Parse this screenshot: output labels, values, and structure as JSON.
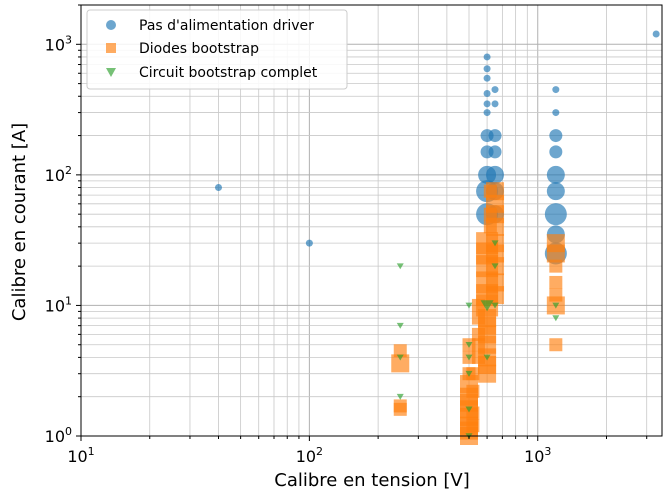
{
  "chart_data": {
    "type": "scatter",
    "xscale": "log",
    "yscale": "log",
    "xlim": [
      10,
      3500
    ],
    "ylim": [
      1,
      2000
    ],
    "xlabel": "Calibre en tension [V]",
    "ylabel": "Calibre en courant [A]",
    "xticks": [
      {
        "base": "10",
        "exp": "1",
        "value": 10
      },
      {
        "base": "10",
        "exp": "2",
        "value": 100
      },
      {
        "base": "10",
        "exp": "3",
        "value": 1000
      }
    ],
    "yticks": [
      {
        "base": "10",
        "exp": "0",
        "value": 1
      },
      {
        "base": "10",
        "exp": "1",
        "value": 10
      },
      {
        "base": "10",
        "exp": "2",
        "value": 100
      },
      {
        "base": "10",
        "exp": "3",
        "value": 1000
      }
    ],
    "grid": "major and minor",
    "legend": "top-left",
    "series": [
      {
        "name": "Pas d'alimentation driver",
        "marker": "circle",
        "color": "#1f77b4",
        "points": [
          [
            40,
            80
          ],
          [
            100,
            30
          ],
          [
            3300,
            1200
          ],
          [
            600,
            800
          ],
          [
            600,
            650
          ],
          [
            600,
            550
          ],
          [
            600,
            420
          ],
          [
            600,
            350
          ],
          [
            600,
            300
          ],
          [
            600,
            200
          ],
          [
            600,
            150
          ],
          [
            600,
            100
          ],
          [
            600,
            75
          ],
          [
            600,
            50
          ],
          [
            650,
            450
          ],
          [
            650,
            350
          ],
          [
            650,
            200
          ],
          [
            650,
            150
          ],
          [
            650,
            100
          ],
          [
            650,
            75
          ],
          [
            650,
            50
          ],
          [
            1200,
            450
          ],
          [
            1200,
            300
          ],
          [
            1200,
            200
          ],
          [
            1200,
            150
          ],
          [
            1200,
            100
          ],
          [
            1200,
            75
          ],
          [
            1200,
            50
          ],
          [
            1200,
            35
          ],
          [
            1200,
            25
          ]
        ],
        "sizes": [
          1,
          1,
          1,
          1,
          1,
          1,
          1,
          1,
          1,
          2,
          2,
          3,
          4,
          4,
          1,
          1,
          2,
          2,
          3,
          3,
          3,
          1,
          1,
          2,
          2,
          3,
          3,
          4,
          3,
          4
        ]
      },
      {
        "name": "Diodes bootstrap",
        "marker": "square",
        "color": "#ff7f0e",
        "points": [
          [
            250,
            4.5
          ],
          [
            250,
            3.6
          ],
          [
            250,
            1.7
          ],
          [
            250,
            1.6
          ],
          [
            500,
            5
          ],
          [
            500,
            4
          ],
          [
            500,
            3
          ],
          [
            500,
            2.5
          ],
          [
            500,
            2
          ],
          [
            500,
            1.8
          ],
          [
            500,
            1.6
          ],
          [
            500,
            1.4
          ],
          [
            500,
            1.2
          ],
          [
            500,
            1.1
          ],
          [
            500,
            1
          ],
          [
            520,
            3
          ],
          [
            520,
            2.2
          ],
          [
            520,
            1.5
          ],
          [
            520,
            1.2
          ],
          [
            550,
            10
          ],
          [
            550,
            8
          ],
          [
            550,
            6
          ],
          [
            550,
            5
          ],
          [
            550,
            4
          ],
          [
            600,
            30
          ],
          [
            600,
            25
          ],
          [
            600,
            20
          ],
          [
            600,
            15
          ],
          [
            600,
            12
          ],
          [
            600,
            10
          ],
          [
            600,
            8
          ],
          [
            600,
            7
          ],
          [
            600,
            6
          ],
          [
            600,
            5
          ],
          [
            600,
            4
          ],
          [
            600,
            3.5
          ],
          [
            600,
            3
          ],
          [
            620,
            75
          ],
          [
            620,
            50
          ],
          [
            620,
            40
          ],
          [
            650,
            75
          ],
          [
            650,
            60
          ],
          [
            650,
            50
          ],
          [
            650,
            40
          ],
          [
            650,
            30
          ],
          [
            650,
            25
          ],
          [
            650,
            20
          ],
          [
            650,
            15
          ],
          [
            650,
            12
          ],
          [
            1200,
            30
          ],
          [
            1200,
            25
          ],
          [
            1200,
            20
          ],
          [
            1200,
            15
          ],
          [
            1200,
            12
          ],
          [
            1200,
            10
          ],
          [
            1200,
            5
          ]
        ],
        "sizes": [
          2,
          3,
          2,
          2,
          2,
          2,
          2,
          3,
          3,
          3,
          3,
          3,
          3,
          3,
          3,
          2,
          2,
          2,
          2,
          2,
          2,
          2,
          2,
          2,
          4,
          4,
          4,
          4,
          4,
          4,
          3,
          3,
          3,
          3,
          3,
          3,
          3,
          2,
          2,
          2,
          3,
          3,
          3,
          3,
          3,
          3,
          3,
          3,
          3,
          3,
          3,
          2,
          2,
          2,
          3,
          2
        ]
      },
      {
        "name": "Circuit bootstrap complet",
        "marker": "triangle",
        "color": "#2ca02c",
        "points": [
          [
            250,
            20
          ],
          [
            250,
            7
          ],
          [
            250,
            4
          ],
          [
            250,
            2
          ],
          [
            500,
            10
          ],
          [
            500,
            5
          ],
          [
            500,
            4
          ],
          [
            500,
            3
          ],
          [
            500,
            1.6
          ],
          [
            500,
            1
          ],
          [
            600,
            10
          ],
          [
            600,
            4
          ],
          [
            650,
            30
          ],
          [
            650,
            20
          ],
          [
            650,
            10
          ],
          [
            1200,
            10
          ],
          [
            1200,
            8
          ]
        ],
        "sizes": [
          1,
          1,
          1,
          1,
          1,
          1,
          1,
          1,
          1,
          1,
          2,
          1,
          1,
          1,
          1,
          1,
          1
        ]
      }
    ]
  }
}
